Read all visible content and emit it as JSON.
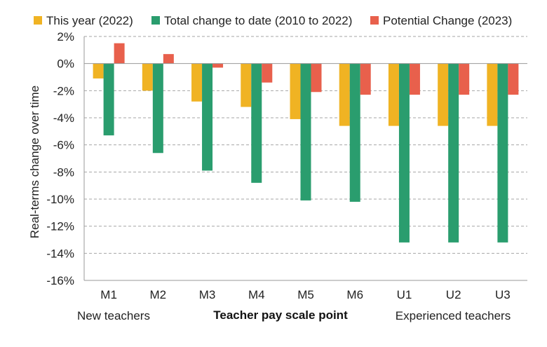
{
  "chart_data": {
    "type": "bar",
    "title": "",
    "xlabel": "Teacher pay scale point",
    "ylabel": "Real-terms change over time",
    "group_labels": {
      "left": "New teachers",
      "right": "Experienced teachers"
    },
    "categories": [
      "M1",
      "M2",
      "M3",
      "M4",
      "M5",
      "M6",
      "U1",
      "U2",
      "U3"
    ],
    "series": [
      {
        "name": "This year (2022)",
        "color": "#f0b323",
        "values": [
          -1.1,
          -2.0,
          -2.8,
          -3.2,
          -4.1,
          -4.6,
          -4.6,
          -4.6,
          -4.6
        ]
      },
      {
        "name": "Total change to date (2010 to 2022)",
        "color": "#2a9d6e",
        "values": [
          -5.3,
          -6.6,
          -7.9,
          -8.8,
          -10.1,
          -10.2,
          -13.2,
          -13.2,
          -13.2
        ]
      },
      {
        "name": "Potential Change (2023)",
        "color": "#e8604c",
        "values": [
          1.5,
          0.7,
          -0.3,
          -1.4,
          -2.1,
          -2.3,
          -2.3,
          -2.3,
          -2.3
        ]
      }
    ],
    "ylim": [
      -16,
      2
    ],
    "yticks": [
      2,
      0,
      -2,
      -4,
      -6,
      -8,
      -10,
      -12,
      -14,
      -16
    ],
    "ytick_labels": [
      "2%",
      "0%",
      "-2%",
      "-4%",
      "-6%",
      "-8%",
      "-10%",
      "-12%",
      "-14%",
      "-16%"
    ],
    "grid": true,
    "legend_position": "top"
  }
}
